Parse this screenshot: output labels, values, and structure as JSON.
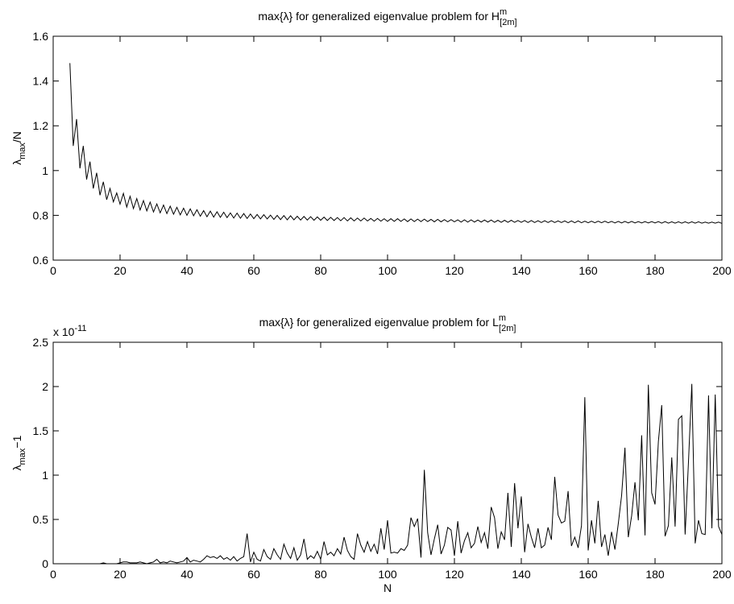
{
  "chart_data": [
    {
      "type": "line",
      "title": {
        "text": "max{λ} for generalized eigenvalue problem for H",
        "sup": "m",
        "sub": "[2m]"
      },
      "ylabel": {
        "text": "λ",
        "sub": "max",
        "after": "/N"
      },
      "x": [
        5,
        6,
        7,
        8,
        9,
        10,
        11,
        12,
        13,
        14,
        15,
        16,
        17,
        18,
        19,
        20,
        21,
        22,
        23,
        24,
        25,
        26,
        27,
        28,
        29,
        30,
        31,
        32,
        33,
        34,
        35,
        36,
        37,
        38,
        39,
        40,
        41,
        42,
        43,
        44,
        45,
        46,
        47,
        48,
        49,
        50,
        51,
        52,
        53,
        54,
        55,
        56,
        57,
        58,
        59,
        60,
        61,
        62,
        63,
        64,
        65,
        66,
        67,
        68,
        69,
        70,
        71,
        72,
        73,
        74,
        75,
        76,
        77,
        78,
        79,
        80,
        81,
        82,
        83,
        84,
        85,
        86,
        87,
        88,
        89,
        90,
        91,
        92,
        93,
        94,
        95,
        96,
        97,
        98,
        99,
        100,
        101,
        102,
        103,
        104,
        105,
        106,
        107,
        108,
        109,
        110,
        111,
        112,
        113,
        114,
        115,
        116,
        117,
        118,
        119,
        120,
        121,
        122,
        123,
        124,
        125,
        126,
        127,
        128,
        129,
        130,
        131,
        132,
        133,
        134,
        135,
        136,
        137,
        138,
        139,
        140,
        141,
        142,
        143,
        144,
        145,
        146,
        147,
        148,
        149,
        150,
        151,
        152,
        153,
        154,
        155,
        156,
        157,
        158,
        159,
        160,
        161,
        162,
        163,
        164,
        165,
        166,
        167,
        168,
        169,
        170,
        171,
        172,
        173,
        174,
        175,
        176,
        177,
        178,
        179,
        180,
        181,
        182,
        183,
        184,
        185,
        186,
        187,
        188,
        189,
        190,
        191,
        192,
        193,
        194,
        195,
        196,
        197,
        198,
        199,
        200
      ],
      "series": [
        {
          "color": "#000000",
          "values": [
            1.48,
            1.11,
            1.23,
            1.01,
            1.11,
            0.96,
            1.04,
            0.92,
            0.99,
            0.89,
            0.95,
            0.87,
            0.92,
            0.86,
            0.9,
            0.85,
            0.898,
            0.837,
            0.885,
            0.83,
            0.875,
            0.824,
            0.866,
            0.82,
            0.859,
            0.815,
            0.851,
            0.811,
            0.846,
            0.808,
            0.841,
            0.805,
            0.836,
            0.802,
            0.832,
            0.8,
            0.829,
            0.798,
            0.825,
            0.796,
            0.821,
            0.794,
            0.819,
            0.792,
            0.816,
            0.791,
            0.814,
            0.79,
            0.811,
            0.788,
            0.81,
            0.787,
            0.808,
            0.786,
            0.806,
            0.785,
            0.804,
            0.784,
            0.803,
            0.784,
            0.801,
            0.782,
            0.8,
            0.781,
            0.799,
            0.78,
            0.798,
            0.78,
            0.796,
            0.779,
            0.795,
            0.779,
            0.794,
            0.778,
            0.793,
            0.778,
            0.792,
            0.777,
            0.791,
            0.777,
            0.79,
            0.776,
            0.79,
            0.775,
            0.789,
            0.775,
            0.788,
            0.775,
            0.788,
            0.775,
            0.786,
            0.774,
            0.786,
            0.774,
            0.785,
            0.773,
            0.785,
            0.773,
            0.785,
            0.773,
            0.784,
            0.772,
            0.784,
            0.772,
            0.783,
            0.772,
            0.783,
            0.772,
            0.782,
            0.771,
            0.782,
            0.771,
            0.781,
            0.771,
            0.781,
            0.771,
            0.78,
            0.77,
            0.78,
            0.77,
            0.78,
            0.77,
            0.779,
            0.77,
            0.779,
            0.77,
            0.779,
            0.769,
            0.778,
            0.769,
            0.778,
            0.769,
            0.778,
            0.769,
            0.777,
            0.769,
            0.777,
            0.768,
            0.777,
            0.768,
            0.776,
            0.768,
            0.776,
            0.768,
            0.776,
            0.768,
            0.775,
            0.768,
            0.775,
            0.767,
            0.775,
            0.767,
            0.775,
            0.767,
            0.774,
            0.767,
            0.774,
            0.767,
            0.774,
            0.767,
            0.774,
            0.767,
            0.773,
            0.766,
            0.773,
            0.766,
            0.773,
            0.766,
            0.773,
            0.766,
            0.772,
            0.766,
            0.772,
            0.766,
            0.772,
            0.766,
            0.772,
            0.765,
            0.772,
            0.765,
            0.771,
            0.765,
            0.771,
            0.765,
            0.771,
            0.765,
            0.771,
            0.765,
            0.771,
            0.765,
            0.77,
            0.765,
            0.77,
            0.765,
            0.77,
            0.764
          ]
        }
      ],
      "xlim": [
        0,
        200
      ],
      "xticks": [
        0,
        20,
        40,
        60,
        80,
        100,
        120,
        140,
        160,
        180,
        200
      ],
      "ylim": [
        0.6,
        1.6
      ],
      "yticks": [
        0.6,
        0.8,
        1,
        1.2,
        1.4,
        1.6
      ]
    },
    {
      "type": "line",
      "title": {
        "text": "max{λ} for generalized eigenvalue problem for L",
        "sup": "m",
        "sub": "[2m]"
      },
      "ylabel": {
        "text": "λ",
        "sub": "max",
        "after": "−1"
      },
      "xlabel": "N",
      "multiplier": {
        "base": "x 10",
        "exponent": "-11"
      },
      "x": [
        5,
        6,
        7,
        8,
        9,
        10,
        11,
        12,
        13,
        14,
        15,
        16,
        17,
        18,
        19,
        20,
        21,
        22,
        23,
        24,
        25,
        26,
        27,
        28,
        29,
        30,
        31,
        32,
        33,
        34,
        35,
        36,
        37,
        38,
        39,
        40,
        41,
        42,
        43,
        44,
        45,
        46,
        47,
        48,
        49,
        50,
        51,
        52,
        53,
        54,
        55,
        56,
        57,
        58,
        59,
        60,
        61,
        62,
        63,
        64,
        65,
        66,
        67,
        68,
        69,
        70,
        71,
        72,
        73,
        74,
        75,
        76,
        77,
        78,
        79,
        80,
        81,
        82,
        83,
        84,
        85,
        86,
        87,
        88,
        89,
        90,
        91,
        92,
        93,
        94,
        95,
        96,
        97,
        98,
        99,
        100,
        101,
        102,
        103,
        104,
        105,
        106,
        107,
        108,
        109,
        110,
        111,
        112,
        113,
        114,
        115,
        116,
        117,
        118,
        119,
        120,
        121,
        122,
        123,
        124,
        125,
        126,
        127,
        128,
        129,
        130,
        131,
        132,
        133,
        134,
        135,
        136,
        137,
        138,
        139,
        140,
        141,
        142,
        143,
        144,
        145,
        146,
        147,
        148,
        149,
        150,
        151,
        152,
        153,
        154,
        155,
        156,
        157,
        158,
        159,
        160,
        161,
        162,
        163,
        164,
        165,
        166,
        167,
        168,
        169,
        170,
        171,
        172,
        173,
        174,
        175,
        176,
        177,
        178,
        179,
        180,
        181,
        182,
        183,
        184,
        185,
        186,
        187,
        188,
        189,
        190,
        191,
        192,
        193,
        194,
        195,
        196,
        197,
        198,
        199,
        200
      ],
      "series": [
        {
          "color": "#000000",
          "values": [
            0,
            0,
            0,
            0,
            0,
            0,
            0,
            0,
            0,
            0,
            0.01,
            0,
            0,
            0,
            0,
            0.01,
            0.02,
            0.02,
            0.01,
            0.01,
            0.01,
            0.02,
            0.01,
            0,
            0.01,
            0.02,
            0.05,
            0.01,
            0.02,
            0.01,
            0.03,
            0.02,
            0.01,
            0.02,
            0.03,
            0.07,
            0.02,
            0.04,
            0.03,
            0.02,
            0.05,
            0.09,
            0.07,
            0.08,
            0.06,
            0.09,
            0.05,
            0.07,
            0.04,
            0.08,
            0.03,
            0.06,
            0.08,
            0.34,
            0.02,
            0.13,
            0.05,
            0.03,
            0.16,
            0.08,
            0.05,
            0.17,
            0.1,
            0.05,
            0.22,
            0.12,
            0.06,
            0.18,
            0.04,
            0.1,
            0.28,
            0.05,
            0.09,
            0.06,
            0.14,
            0.05,
            0.25,
            0.1,
            0.13,
            0.09,
            0.17,
            0.11,
            0.3,
            0.15,
            0.08,
            0.05,
            0.34,
            0.21,
            0.13,
            0.25,
            0.14,
            0.22,
            0.11,
            0.4,
            0.16,
            0.49,
            0.12,
            0.13,
            0.12,
            0.17,
            0.15,
            0.21,
            0.52,
            0.42,
            0.51,
            0.07,
            1.06,
            0.35,
            0.1,
            0.28,
            0.44,
            0.11,
            0.21,
            0.41,
            0.38,
            0.09,
            0.48,
            0.12,
            0.26,
            0.35,
            0.18,
            0.23,
            0.42,
            0.24,
            0.35,
            0.17,
            0.64,
            0.52,
            0.17,
            0.36,
            0.27,
            0.8,
            0.19,
            0.91,
            0.4,
            0.76,
            0.13,
            0.45,
            0.3,
            0.18,
            0.4,
            0.18,
            0.21,
            0.41,
            0.27,
            0.98,
            0.55,
            0.46,
            0.48,
            0.82,
            0.2,
            0.3,
            0.18,
            0.43,
            1.88,
            0.15,
            0.49,
            0.23,
            0.71,
            0.19,
            0.33,
            0.09,
            0.36,
            0.16,
            0.45,
            0.77,
            1.31,
            0.3,
            0.54,
            0.92,
            0.49,
            1.45,
            0.32,
            2.02,
            0.8,
            0.67,
            1.38,
            1.79,
            0.31,
            0.43,
            1.2,
            0.42,
            1.63,
            1.67,
            0.33,
            1.15,
            2.03,
            0.23,
            0.49,
            0.34,
            0.33,
            1.9,
            0.4,
            1.91,
            0.42,
            0.33
          ]
        }
      ],
      "xlim": [
        0,
        200
      ],
      "xticks": [
        0,
        20,
        40,
        60,
        80,
        100,
        120,
        140,
        160,
        180,
        200
      ],
      "ylim": [
        0,
        2.5
      ],
      "yticks": [
        0,
        0.5,
        1,
        1.5,
        2,
        2.5
      ]
    }
  ]
}
